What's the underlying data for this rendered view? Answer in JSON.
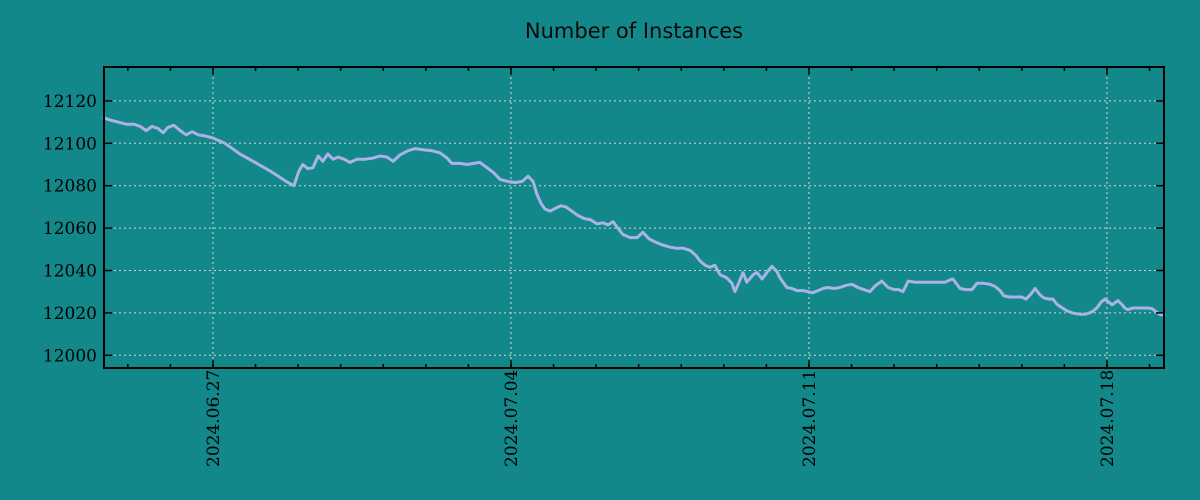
{
  "title": "Number of Instances",
  "colors": {
    "background": "#12888a",
    "line": "#aab2e8",
    "grid": "#d6d6d6",
    "axis": "#000000",
    "text": "#000000"
  },
  "chart_data": {
    "type": "line",
    "title": "Number of Instances",
    "xlabel": "",
    "ylabel": "",
    "legend": "none",
    "grid": true,
    "x_unit": "days from left edge of plot (~2024-06-24.4)",
    "xlim": [
      0,
      24.9
    ],
    "ylim": [
      11994,
      12136
    ],
    "y_ticks": [
      12000,
      12020,
      12040,
      12060,
      12080,
      12100,
      12120
    ],
    "x_ticks": [
      {
        "day": 2.56,
        "label": "2024.06.27"
      },
      {
        "day": 9.56,
        "label": "2024.07.04"
      },
      {
        "day": 16.56,
        "label": "2024.07.11"
      },
      {
        "day": 23.56,
        "label": "2024.07.18"
      }
    ],
    "x_minor_ticks": {
      "start_day": 0.56,
      "step_day": 1,
      "end_day": 24.9
    },
    "series": [
      {
        "name": "Number of Instances",
        "points": [
          [
            0,
            12112
          ],
          [
            0.14,
            12111
          ],
          [
            0.33,
            12110
          ],
          [
            0.52,
            12109
          ],
          [
            0.7,
            12109
          ],
          [
            0.85,
            12108
          ],
          [
            0.99,
            12106
          ],
          [
            1.13,
            12108
          ],
          [
            1.27,
            12107
          ],
          [
            1.39,
            12105
          ],
          [
            1.5,
            12107.5
          ],
          [
            1.64,
            12108.5
          ],
          [
            1.79,
            12106
          ],
          [
            1.93,
            12104
          ],
          [
            2.07,
            12105.5
          ],
          [
            2.21,
            12104
          ],
          [
            2.37,
            12103.5
          ],
          [
            2.56,
            12102.5
          ],
          [
            2.84,
            12100
          ],
          [
            3.19,
            12095
          ],
          [
            3.55,
            12091
          ],
          [
            3.9,
            12087
          ],
          [
            4.13,
            12084
          ],
          [
            4.32,
            12081.5
          ],
          [
            4.46,
            12080
          ],
          [
            4.58,
            12087
          ],
          [
            4.67,
            12090
          ],
          [
            4.79,
            12088
          ],
          [
            4.91,
            12088.5
          ],
          [
            5.03,
            12094
          ],
          [
            5.14,
            12091.5
          ],
          [
            5.26,
            12095
          ],
          [
            5.38,
            12092.5
          ],
          [
            5.5,
            12093.5
          ],
          [
            5.64,
            12092.5
          ],
          [
            5.78,
            12091
          ],
          [
            5.94,
            12092.5
          ],
          [
            6.13,
            12092.5
          ],
          [
            6.32,
            12093
          ],
          [
            6.48,
            12094
          ],
          [
            6.65,
            12093.5
          ],
          [
            6.79,
            12091.5
          ],
          [
            6.95,
            12094.5
          ],
          [
            7.14,
            12096.5
          ],
          [
            7.31,
            12097.5
          ],
          [
            7.49,
            12097
          ],
          [
            7.7,
            12096.5
          ],
          [
            7.89,
            12095.5
          ],
          [
            8.06,
            12093
          ],
          [
            8.17,
            12090.5
          ],
          [
            8.36,
            12090.5
          ],
          [
            8.53,
            12090
          ],
          [
            8.69,
            12090.5
          ],
          [
            8.83,
            12091
          ],
          [
            9,
            12088.5
          ],
          [
            9.16,
            12086
          ],
          [
            9.3,
            12083
          ],
          [
            9.49,
            12082
          ],
          [
            9.65,
            12081.5
          ],
          [
            9.82,
            12082
          ],
          [
            9.96,
            12084.5
          ],
          [
            10.08,
            12082
          ],
          [
            10.17,
            12076
          ],
          [
            10.27,
            12071.5
          ],
          [
            10.36,
            12069
          ],
          [
            10.48,
            12068
          ],
          [
            10.62,
            12069.5
          ],
          [
            10.73,
            12070.5
          ],
          [
            10.85,
            12070
          ],
          [
            10.99,
            12068
          ],
          [
            11.13,
            12066
          ],
          [
            11.28,
            12064.5
          ],
          [
            11.42,
            12064
          ],
          [
            11.58,
            12062
          ],
          [
            11.72,
            12062.5
          ],
          [
            11.84,
            12061.5
          ],
          [
            11.96,
            12063
          ],
          [
            12.07,
            12060
          ],
          [
            12.19,
            12057
          ],
          [
            12.36,
            12055.5
          ],
          [
            12.52,
            12055.5
          ],
          [
            12.66,
            12058
          ],
          [
            12.8,
            12055
          ],
          [
            12.94,
            12053.5
          ],
          [
            13.13,
            12052
          ],
          [
            13.3,
            12051
          ],
          [
            13.44,
            12050.5
          ],
          [
            13.6,
            12050.5
          ],
          [
            13.77,
            12049.5
          ],
          [
            13.91,
            12047
          ],
          [
            14,
            12044.5
          ],
          [
            14.12,
            12042.5
          ],
          [
            14.24,
            12041.5
          ],
          [
            14.35,
            12042.5
          ],
          [
            14.47,
            12038
          ],
          [
            14.63,
            12036.5
          ],
          [
            14.75,
            12034
          ],
          [
            14.82,
            12030
          ],
          [
            14.92,
            12034.5
          ],
          [
            15.01,
            12039
          ],
          [
            15.1,
            12034.5
          ],
          [
            15.25,
            12038
          ],
          [
            15.34,
            12039
          ],
          [
            15.46,
            12036
          ],
          [
            15.57,
            12039
          ],
          [
            15.69,
            12042
          ],
          [
            15.81,
            12039.5
          ],
          [
            15.88,
            12036.5
          ],
          [
            16.04,
            12032
          ],
          [
            16.16,
            12031.5
          ],
          [
            16.28,
            12030.5
          ],
          [
            16.42,
            12030.5
          ],
          [
            16.54,
            12030
          ],
          [
            16.65,
            12029.5
          ],
          [
            16.77,
            12030.5
          ],
          [
            16.89,
            12031.5
          ],
          [
            17.01,
            12032
          ],
          [
            17.15,
            12031.5
          ],
          [
            17.29,
            12032
          ],
          [
            17.43,
            12033
          ],
          [
            17.57,
            12033.5
          ],
          [
            17.71,
            12032
          ],
          [
            17.85,
            12031
          ],
          [
            17.99,
            12030
          ],
          [
            18.13,
            12033
          ],
          [
            18.27,
            12035
          ],
          [
            18.42,
            12032
          ],
          [
            18.56,
            12031
          ],
          [
            18.67,
            12031
          ],
          [
            18.77,
            12030
          ],
          [
            18.89,
            12035
          ],
          [
            19.05,
            12034.5
          ],
          [
            19.29,
            12034.5
          ],
          [
            19.52,
            12034.5
          ],
          [
            19.76,
            12034.5
          ],
          [
            19.87,
            12035.5
          ],
          [
            19.94,
            12036
          ],
          [
            20.11,
            12031.5
          ],
          [
            20.25,
            12031
          ],
          [
            20.39,
            12031
          ],
          [
            20.51,
            12034
          ],
          [
            20.65,
            12034
          ],
          [
            20.81,
            12033.5
          ],
          [
            20.93,
            12032.5
          ],
          [
            21.05,
            12030.5
          ],
          [
            21.14,
            12028
          ],
          [
            21.28,
            12027.5
          ],
          [
            21.42,
            12027.5
          ],
          [
            21.56,
            12027.5
          ],
          [
            21.66,
            12026.5
          ],
          [
            21.78,
            12029
          ],
          [
            21.87,
            12031.5
          ],
          [
            21.99,
            12028.5
          ],
          [
            22.08,
            12027
          ],
          [
            22.2,
            12026.5
          ],
          [
            22.29,
            12026.5
          ],
          [
            22.39,
            12024
          ],
          [
            22.5,
            12022.5
          ],
          [
            22.62,
            12021
          ],
          [
            22.74,
            12020
          ],
          [
            22.86,
            12019.5
          ],
          [
            22.97,
            12019.3
          ],
          [
            23.09,
            12019.5
          ],
          [
            23.21,
            12020.5
          ],
          [
            23.33,
            12022.5
          ],
          [
            23.42,
            12025
          ],
          [
            23.51,
            12026.5
          ],
          [
            23.61,
            12025
          ],
          [
            23.68,
            12023.8
          ],
          [
            23.75,
            12024.8
          ],
          [
            23.82,
            12025.8
          ],
          [
            23.91,
            12024
          ],
          [
            23.98,
            12022.3
          ],
          [
            24.05,
            12021.5
          ],
          [
            24.17,
            12022.3
          ],
          [
            24.34,
            12022.3
          ],
          [
            24.5,
            12022.3
          ],
          [
            24.62,
            12022
          ],
          [
            24.71,
            12020.6
          ],
          [
            24.81,
            12019.2
          ],
          [
            24.9,
            12019
          ]
        ]
      }
    ]
  }
}
